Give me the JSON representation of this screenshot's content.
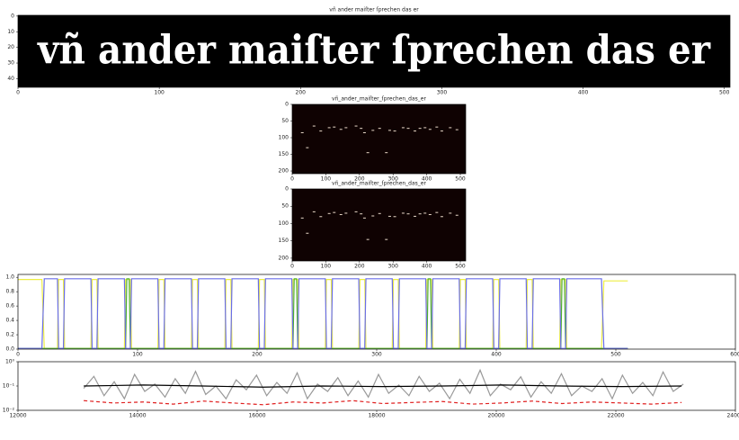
{
  "chart_data": [
    {
      "type": "image",
      "title": "vñ ander maiſter ſprechen das er",
      "xlim": [
        0,
        504
      ],
      "ylim": [
        45.5,
        -0.5
      ],
      "xticks": [
        0,
        100,
        200,
        300,
        400,
        500
      ],
      "yticks": [
        0,
        10,
        20,
        30,
        40
      ],
      "background": "#000000",
      "color": "#ffffff"
    },
    {
      "type": "scatter",
      "title": "vñ_ander_maiſter_ſprechen_das_er",
      "xlim": [
        0,
        516
      ],
      "ylim": [
        208,
        0
      ],
      "xticks": [
        0,
        100,
        200,
        300,
        400,
        500
      ],
      "yticks": [
        0,
        50,
        100,
        150,
        200
      ],
      "background": "#0f0202",
      "color": "#e8d8c8",
      "x": [
        30,
        65,
        85,
        110,
        125,
        145,
        160,
        190,
        205,
        215,
        225,
        240,
        260,
        280,
        290,
        305,
        330,
        345,
        365,
        380,
        395,
        410,
        430,
        445,
        470,
        490,
        45
      ],
      "values": [
        85,
        65,
        80,
        70,
        68,
        75,
        70,
        65,
        72,
        85,
        145,
        78,
        72,
        145,
        78,
        80,
        70,
        72,
        80,
        72,
        70,
        75,
        68,
        80,
        70,
        76,
        130
      ]
    },
    {
      "type": "scatter",
      "title": "vñ_ander_maiſter_ſprechen_das_er",
      "xlim": [
        0,
        516
      ],
      "ylim": [
        208,
        0
      ],
      "xticks": [
        0,
        100,
        200,
        300,
        400,
        500
      ],
      "yticks": [
        0,
        50,
        100,
        150,
        200
      ],
      "background": "#0f0202",
      "color": "#e8d8c8",
      "x": [
        30,
        65,
        85,
        110,
        125,
        145,
        160,
        190,
        205,
        215,
        225,
        240,
        260,
        280,
        290,
        305,
        330,
        345,
        365,
        380,
        395,
        410,
        430,
        445,
        470,
        490,
        45
      ],
      "values": [
        84,
        66,
        80,
        71,
        68,
        74,
        70,
        66,
        72,
        84,
        146,
        78,
        71,
        146,
        79,
        80,
        70,
        72,
        79,
        72,
        70,
        74,
        68,
        80,
        70,
        76,
        128
      ]
    },
    {
      "type": "line",
      "xlim": [
        0,
        600
      ],
      "ylim": [
        0,
        1.04
      ],
      "xticks": [
        0,
        100,
        200,
        300,
        400,
        500,
        600
      ],
      "yticks": [
        {
          "value": 0,
          "label": "0.0"
        },
        0.2,
        0.4,
        0.6,
        0.8,
        {
          "value": 1,
          "label": "1.0"
        }
      ],
      "series": [
        {
          "color": "#eeee44",
          "x": [
            0,
            20,
            22,
            33,
            34,
            38,
            39,
            61,
            62,
            66,
            67,
            89,
            90,
            94,
            95,
            117,
            118,
            122,
            123,
            145,
            146,
            150,
            151,
            173,
            174,
            178,
            179,
            201,
            202,
            206,
            207,
            229,
            230,
            234,
            235,
            257,
            258,
            262,
            263,
            285,
            286,
            290,
            291,
            313,
            314,
            318,
            319,
            341,
            342,
            346,
            347,
            369,
            370,
            374,
            375,
            397,
            398,
            402,
            403,
            425,
            426,
            430,
            431,
            453,
            454,
            458,
            459,
            488,
            490,
            510
          ],
          "values": [
            0.97,
            0.97,
            0.01,
            0.01,
            0.97,
            0.97,
            0.01,
            0.01,
            0.97,
            0.97,
            0.01,
            0.01,
            0.97,
            0.97,
            0.01,
            0.01,
            0.97,
            0.97,
            0.01,
            0.01,
            0.97,
            0.97,
            0.01,
            0.01,
            0.97,
            0.97,
            0.01,
            0.01,
            0.97,
            0.97,
            0.01,
            0.01,
            0.97,
            0.97,
            0.01,
            0.01,
            0.97,
            0.97,
            0.01,
            0.01,
            0.97,
            0.97,
            0.01,
            0.01,
            0.97,
            0.97,
            0.01,
            0.01,
            0.97,
            0.97,
            0.01,
            0.01,
            0.97,
            0.97,
            0.01,
            0.01,
            0.97,
            0.97,
            0.01,
            0.01,
            0.97,
            0.97,
            0.01,
            0.01,
            0.97,
            0.97,
            0.01,
            0.01,
            0.95,
            0.95
          ]
        },
        {
          "color": "#4daf30",
          "x": [
            0,
            90,
            91,
            93,
            94,
            230,
            231,
            233,
            234,
            342,
            343,
            345,
            346,
            454,
            455,
            457,
            458,
            510
          ],
          "values": [
            0.01,
            0.01,
            0.98,
            0.98,
            0.01,
            0.01,
            0.98,
            0.98,
            0.01,
            0.01,
            0.98,
            0.98,
            0.01,
            0.01,
            0.98,
            0.98,
            0.01,
            0.01
          ]
        },
        {
          "color": "#6a6ee8",
          "x": [
            0,
            20,
            22,
            33,
            34,
            38,
            39,
            61,
            62,
            66,
            67,
            89,
            90,
            94,
            95,
            117,
            118,
            122,
            123,
            145,
            146,
            150,
            151,
            173,
            174,
            178,
            179,
            201,
            202,
            206,
            207,
            229,
            230,
            234,
            235,
            257,
            258,
            262,
            263,
            285,
            286,
            290,
            291,
            313,
            314,
            318,
            319,
            341,
            342,
            346,
            347,
            369,
            370,
            374,
            375,
            397,
            398,
            402,
            403,
            425,
            426,
            430,
            431,
            453,
            454,
            458,
            459,
            488,
            490,
            510
          ],
          "values": [
            0.01,
            0.01,
            0.98,
            0.98,
            0.01,
            0.01,
            0.98,
            0.98,
            0.01,
            0.01,
            0.98,
            0.98,
            0.01,
            0.01,
            0.98,
            0.98,
            0.01,
            0.01,
            0.98,
            0.98,
            0.01,
            0.01,
            0.98,
            0.98,
            0.01,
            0.01,
            0.98,
            0.98,
            0.01,
            0.01,
            0.98,
            0.98,
            0.01,
            0.01,
            0.98,
            0.98,
            0.01,
            0.01,
            0.98,
            0.98,
            0.01,
            0.01,
            0.98,
            0.98,
            0.01,
            0.01,
            0.98,
            0.98,
            0.01,
            0.01,
            0.98,
            0.98,
            0.01,
            0.01,
            0.98,
            0.98,
            0.01,
            0.01,
            0.98,
            0.98,
            0.01,
            0.01,
            0.98,
            0.98,
            0.01,
            0.01,
            0.98,
            0.98,
            0.01,
            0.01
          ]
        }
      ]
    },
    {
      "type": "line",
      "log_y": true,
      "xlim": [
        12000,
        24000
      ],
      "ylim": [
        0.01,
        1
      ],
      "xticks": [
        12000,
        14000,
        16000,
        18000,
        20000,
        22000,
        24000
      ],
      "yticks": [
        {
          "value": 0.01,
          "label": "10⁻²"
        },
        {
          "value": 0.1,
          "label": "10⁻¹"
        },
        {
          "value": 1,
          "label": "10⁰"
        }
      ],
      "series": [
        {
          "color": "#999999",
          "x": [
            13100,
            13270,
            13440,
            13610,
            13780,
            13950,
            14120,
            14290,
            14460,
            14630,
            14800,
            14970,
            15140,
            15310,
            15480,
            15650,
            15820,
            15990,
            16160,
            16330,
            16500,
            16670,
            16840,
            17010,
            17180,
            17350,
            17520,
            17690,
            17860,
            18030,
            18200,
            18370,
            18540,
            18710,
            18880,
            19050,
            19220,
            19390,
            19560,
            19730,
            19900,
            20070,
            20240,
            20410,
            20580,
            20750,
            20920,
            21090,
            21260,
            21430,
            21600,
            21770,
            21940,
            22110,
            22280,
            22450,
            22620,
            22790,
            22960,
            23130
          ],
          "values": [
            0.08,
            0.25,
            0.04,
            0.15,
            0.03,
            0.3,
            0.06,
            0.12,
            0.035,
            0.2,
            0.05,
            0.4,
            0.045,
            0.1,
            0.03,
            0.18,
            0.07,
            0.28,
            0.04,
            0.14,
            0.05,
            0.35,
            0.03,
            0.12,
            0.06,
            0.22,
            0.04,
            0.16,
            0.035,
            0.3,
            0.05,
            0.11,
            0.04,
            0.25,
            0.06,
            0.13,
            0.03,
            0.19,
            0.05,
            0.45,
            0.04,
            0.12,
            0.07,
            0.24,
            0.035,
            0.15,
            0.05,
            0.32,
            0.04,
            0.1,
            0.06,
            0.2,
            0.03,
            0.28,
            0.05,
            0.14,
            0.04,
            0.38,
            0.06,
            0.12
          ]
        },
        {
          "color": "#000000",
          "x": [
            13100,
            14100,
            15100,
            16100,
            17100,
            18100,
            19100,
            20100,
            21100,
            22100,
            23100
          ],
          "values": [
            0.1,
            0.11,
            0.1,
            0.09,
            0.1,
            0.095,
            0.1,
            0.11,
            0.1,
            0.095,
            0.1
          ]
        },
        {
          "color": "#e02020",
          "dashed": true,
          "x": [
            13100,
            13600,
            14100,
            14600,
            15100,
            15600,
            16100,
            16600,
            17100,
            17600,
            18100,
            18600,
            19100,
            19600,
            20100,
            20600,
            21100,
            21600,
            22100,
            22600,
            23100
          ],
          "values": [
            0.025,
            0.02,
            0.022,
            0.018,
            0.024,
            0.02,
            0.017,
            0.022,
            0.02,
            0.025,
            0.019,
            0.021,
            0.023,
            0.018,
            0.02,
            0.024,
            0.019,
            0.022,
            0.02,
            0.018,
            0.021
          ]
        }
      ]
    }
  ]
}
